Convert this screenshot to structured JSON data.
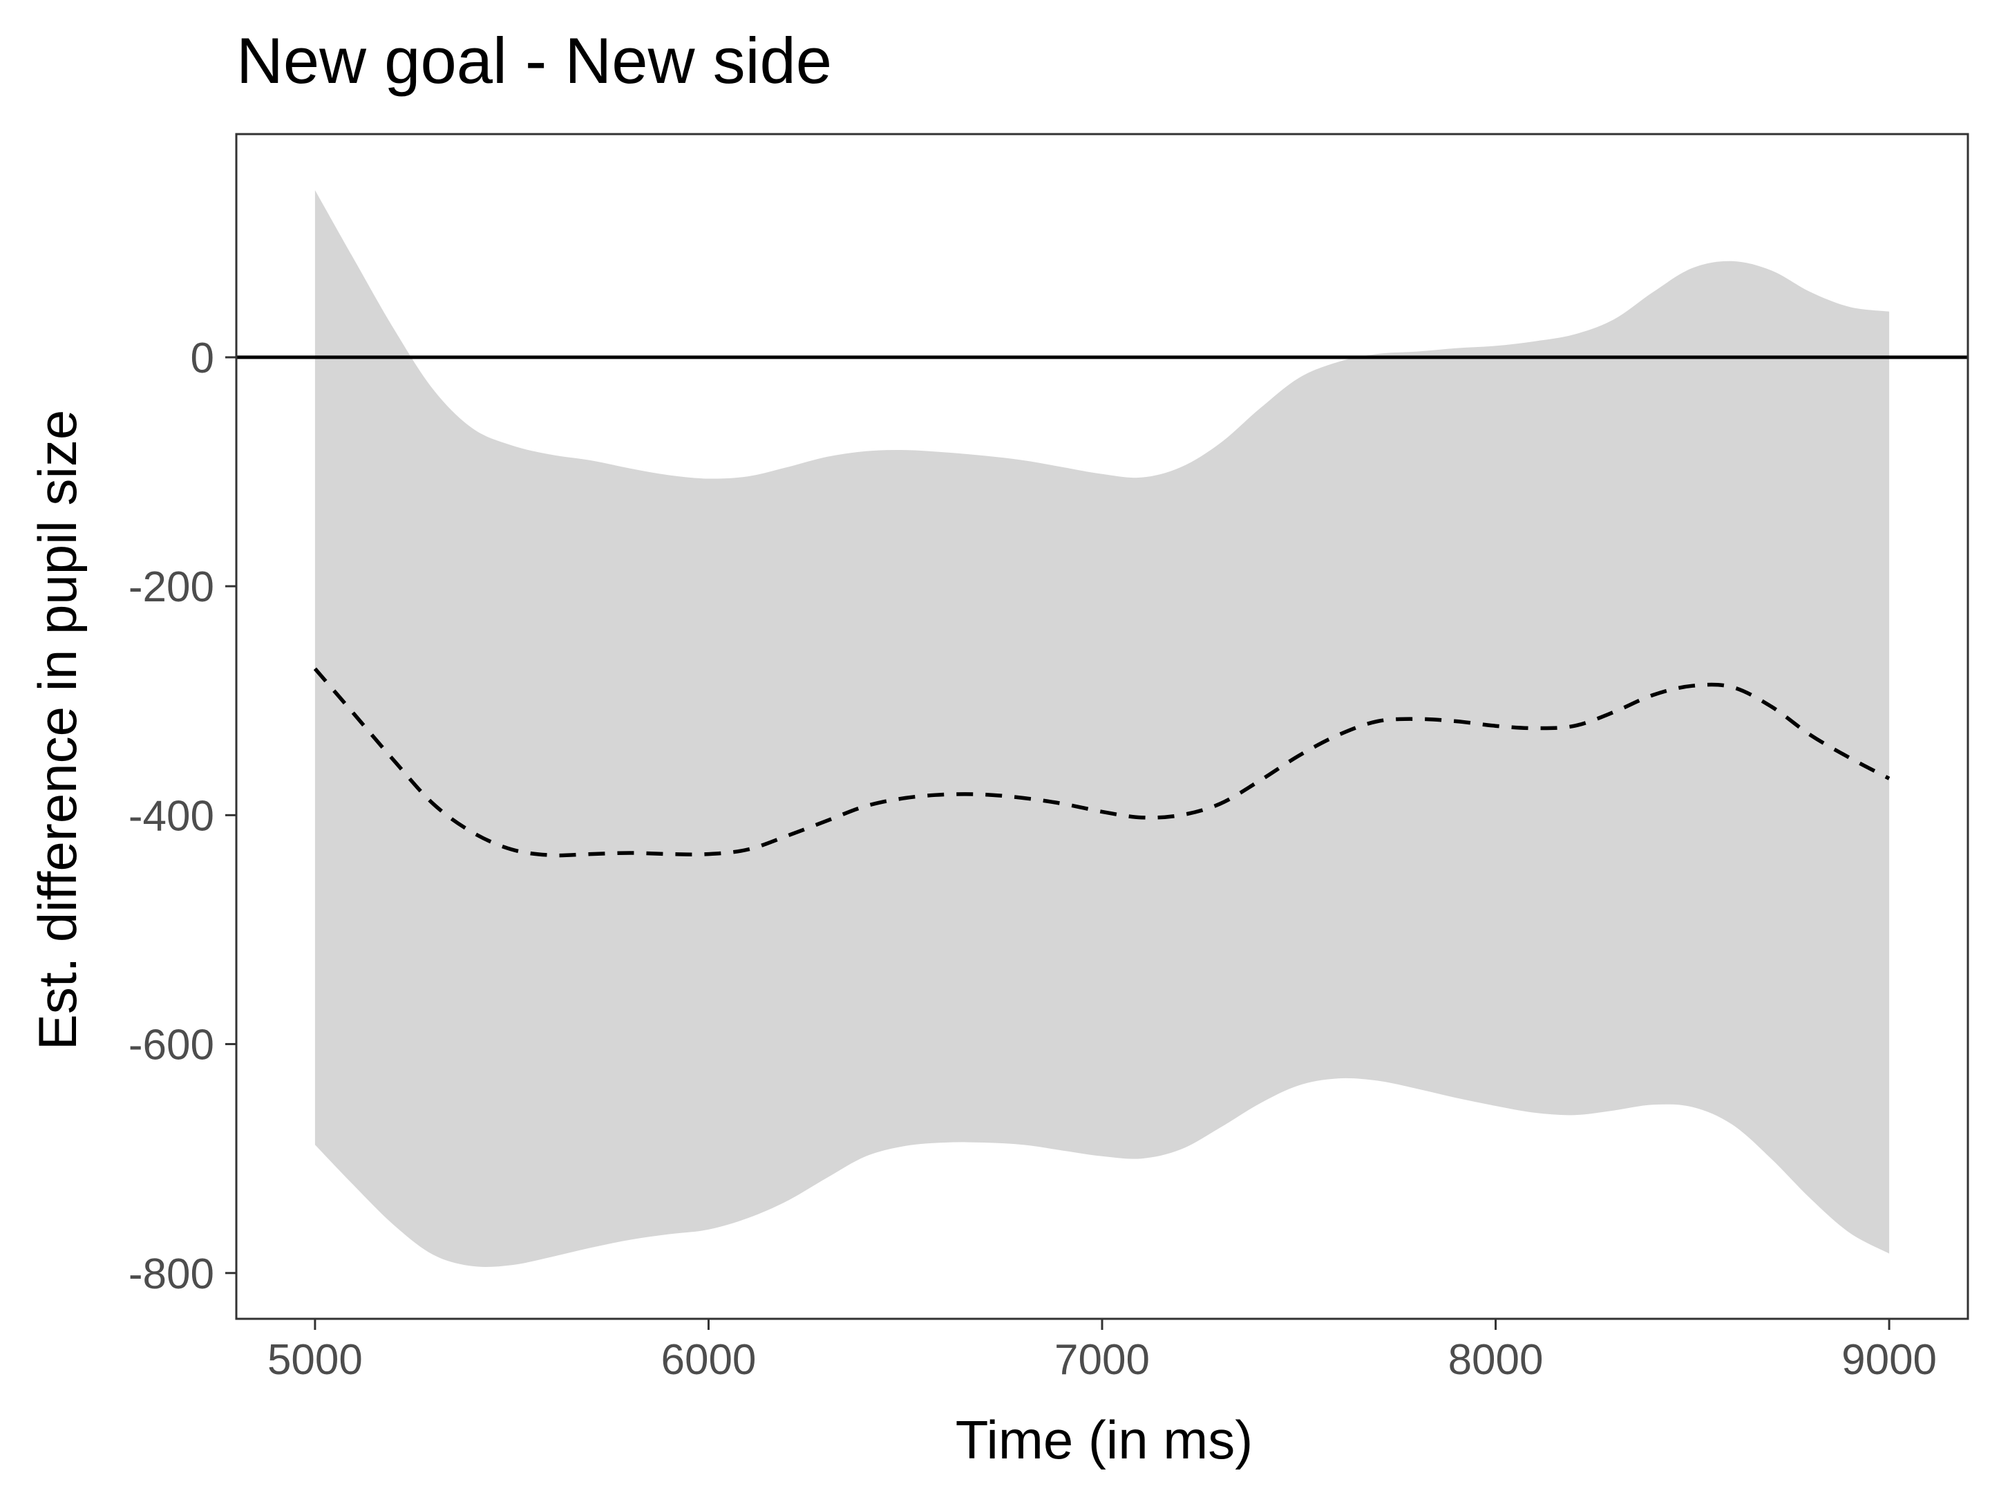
{
  "chart_data": {
    "type": "line",
    "title": "New goal - New side",
    "xlabel": "Time (in ms)",
    "ylabel": "Est. difference in pupil size",
    "xlim": [
      4800,
      9200
    ],
    "ylim": [
      -840,
      195
    ],
    "x_ticks": [
      5000,
      6000,
      7000,
      8000,
      9000
    ],
    "x_tick_labels": [
      "5000",
      "6000",
      "7000",
      "8000",
      "9000"
    ],
    "y_ticks": [
      0,
      -200,
      -400,
      -600,
      -800
    ],
    "y_tick_labels": [
      "0",
      "-200",
      "-400",
      "-600",
      "-800"
    ],
    "grid": false,
    "legend": "none",
    "reference_line": {
      "y": 0,
      "color": "#000000"
    },
    "colors": {
      "ribbon": "#d6d6d6",
      "estimate": "#000000",
      "frame": "#333333"
    },
    "series": [
      {
        "role": "estimate",
        "style": "dashed",
        "x": [
          5000,
          5100,
          5200,
          5300,
          5400,
          5500,
          5600,
          5700,
          5800,
          5900,
          6000,
          6100,
          6200,
          6300,
          6400,
          6500,
          6600,
          6700,
          6800,
          6900,
          7000,
          7100,
          7200,
          7300,
          7400,
          7500,
          7600,
          7700,
          7800,
          7900,
          8000,
          8100,
          8200,
          8300,
          8400,
          8500,
          8600,
          8700,
          8800,
          8900,
          9000
        ],
        "y": [
          -272,
          -312,
          -352,
          -390,
          -415,
          -430,
          -435,
          -434,
          -433,
          -434,
          -434,
          -430,
          -418,
          -405,
          -392,
          -385,
          -382,
          -382,
          -385,
          -390,
          -397,
          -402,
          -400,
          -390,
          -370,
          -348,
          -330,
          -318,
          -316,
          -318,
          -322,
          -324,
          -322,
          -310,
          -295,
          -287,
          -288,
          -305,
          -330,
          -350,
          -368
        ]
      },
      {
        "role": "confidence-band",
        "x": [
          5000,
          5100,
          5200,
          5300,
          5400,
          5500,
          5600,
          5700,
          5800,
          5900,
          6000,
          6100,
          6200,
          6300,
          6400,
          6500,
          6600,
          6700,
          6800,
          6900,
          7000,
          7100,
          7200,
          7300,
          7400,
          7500,
          7600,
          7700,
          7800,
          7900,
          8000,
          8100,
          8200,
          8300,
          8400,
          8500,
          8600,
          8700,
          8800,
          8900,
          9000
        ],
        "lower": [
          -688,
          -724,
          -758,
          -784,
          -794,
          -793,
          -786,
          -778,
          -771,
          -766,
          -762,
          -752,
          -737,
          -717,
          -698,
          -689,
          -686,
          -686,
          -688,
          -693,
          -698,
          -700,
          -692,
          -673,
          -652,
          -636,
          -630,
          -632,
          -639,
          -647,
          -654,
          -660,
          -662,
          -658,
          -653,
          -655,
          -670,
          -700,
          -735,
          -765,
          -783
        ],
        "upper": [
          146,
          85,
          25,
          -28,
          -62,
          -77,
          -85,
          -90,
          -97,
          -103,
          -106,
          -104,
          -96,
          -87,
          -82,
          -81,
          -83,
          -86,
          -90,
          -96,
          -102,
          -105,
          -96,
          -75,
          -45,
          -18,
          -4,
          3,
          5,
          8,
          10,
          14,
          20,
          33,
          57,
          78,
          84,
          76,
          57,
          44,
          40
        ]
      }
    ]
  }
}
